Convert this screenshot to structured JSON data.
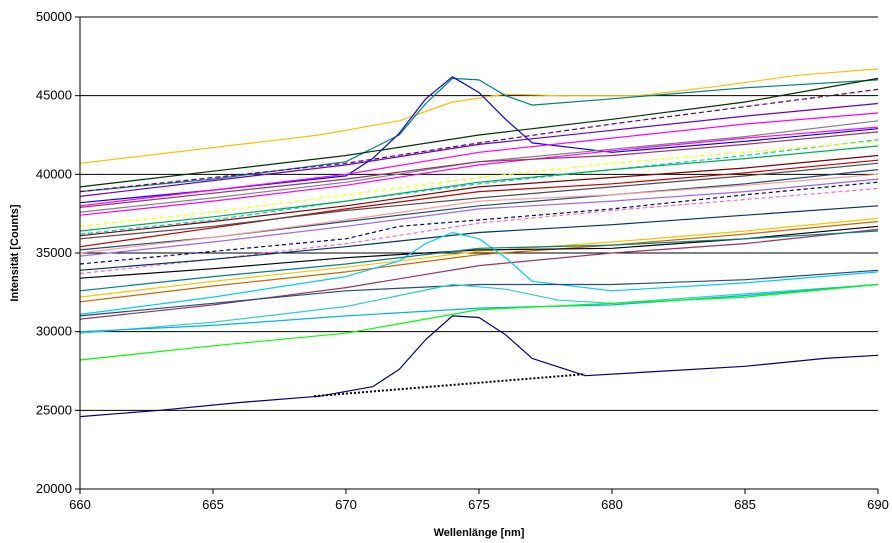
{
  "chart_data": {
    "type": "line",
    "title": "",
    "xlabel": "Wellenlänge [nm]",
    "ylabel": "Intensität [Counts]",
    "xlim": [
      660,
      690
    ],
    "ylim": [
      20000,
      50000
    ],
    "x_ticks": [
      "660",
      "665",
      "670",
      "675",
      "680",
      "685",
      "690"
    ],
    "y_ticks": [
      "20000",
      "25000",
      "30000",
      "35000",
      "40000",
      "45000",
      "50000"
    ],
    "grid": "horizontal",
    "legend": "none",
    "series": [
      {
        "color": "#ffc000",
        "values": [
          [
            660,
            40700
          ],
          [
            663,
            41300
          ],
          [
            666,
            41900
          ],
          [
            669,
            42500
          ],
          [
            672,
            43400
          ],
          [
            674,
            44600
          ],
          [
            676,
            45100
          ],
          [
            678,
            45000
          ],
          [
            681,
            45000
          ],
          [
            684,
            45600
          ],
          [
            687,
            46300
          ],
          [
            690,
            46700
          ]
        ]
      },
      {
        "color": "#008080",
        "values": [
          [
            660,
            38900
          ],
          [
            665,
            39700
          ],
          [
            670,
            40800
          ],
          [
            672,
            42500
          ],
          [
            673,
            44500
          ],
          [
            674,
            46100
          ],
          [
            675,
            46000
          ],
          [
            676,
            45000
          ],
          [
            677,
            44400
          ],
          [
            680,
            44800
          ],
          [
            685,
            45500
          ],
          [
            690,
            46000
          ]
        ]
      },
      {
        "color": "#0000ff",
        "values": [
          [
            660,
            38200
          ],
          [
            665,
            39000
          ],
          [
            670,
            39900
          ],
          [
            671,
            41000
          ],
          [
            672,
            42600
          ],
          [
            673,
            44800
          ],
          [
            674,
            46200
          ],
          [
            675,
            45200
          ],
          [
            676,
            43500
          ],
          [
            677,
            42000
          ],
          [
            680,
            41400
          ],
          [
            685,
            42100
          ],
          [
            690,
            42900
          ]
        ]
      },
      {
        "color": "#003300",
        "values": [
          [
            660,
            39200
          ],
          [
            665,
            40200
          ],
          [
            670,
            41200
          ],
          [
            675,
            42500
          ],
          [
            680,
            43500
          ],
          [
            685,
            44600
          ],
          [
            690,
            46100
          ]
        ]
      },
      {
        "color": "#660066",
        "dash": "5,3",
        "values": [
          [
            660,
            38900
          ],
          [
            665,
            39800
          ],
          [
            670,
            40700
          ],
          [
            675,
            42000
          ],
          [
            680,
            43200
          ],
          [
            685,
            44300
          ],
          [
            690,
            45400
          ]
        ]
      },
      {
        "color": "#ff00ff",
        "values": [
          [
            660,
            38000
          ],
          [
            665,
            39000
          ],
          [
            670,
            40000
          ],
          [
            675,
            41400
          ],
          [
            680,
            42300
          ],
          [
            685,
            43200
          ],
          [
            690,
            43900
          ]
        ]
      },
      {
        "color": "#ff00ff",
        "values": [
          [
            660,
            37400
          ],
          [
            665,
            38300
          ],
          [
            670,
            39300
          ],
          [
            675,
            40600
          ],
          [
            680,
            41500
          ],
          [
            685,
            42300
          ],
          [
            690,
            43000
          ]
        ]
      },
      {
        "color": "#6600cc",
        "values": [
          [
            660,
            38600
          ],
          [
            665,
            39600
          ],
          [
            670,
            40600
          ],
          [
            675,
            41900
          ],
          [
            680,
            42800
          ],
          [
            685,
            43700
          ],
          [
            690,
            44500
          ]
        ]
      },
      {
        "color": "#808080",
        "values": [
          [
            660,
            37600
          ],
          [
            665,
            38500
          ],
          [
            670,
            39500
          ],
          [
            675,
            40800
          ],
          [
            680,
            41600
          ],
          [
            685,
            42400
          ],
          [
            690,
            43400
          ]
        ]
      },
      {
        "color": "#00cccc",
        "dash": "5,3",
        "values": [
          [
            660,
            36200
          ],
          [
            665,
            37100
          ],
          [
            670,
            38300
          ],
          [
            675,
            39400
          ],
          [
            680,
            40300
          ],
          [
            685,
            41200
          ],
          [
            690,
            42200
          ]
        ]
      },
      {
        "color": "#ffff00",
        "dash": "5,3",
        "values": [
          [
            660,
            36700
          ],
          [
            665,
            37600
          ],
          [
            670,
            38700
          ],
          [
            675,
            39800
          ],
          [
            680,
            40700
          ],
          [
            685,
            41400
          ],
          [
            690,
            42100
          ]
        ]
      },
      {
        "color": "#993366",
        "values": [
          [
            660,
            37900
          ],
          [
            665,
            38800
          ],
          [
            670,
            39700
          ],
          [
            675,
            40800
          ],
          [
            680,
            41200
          ],
          [
            685,
            41900
          ],
          [
            690,
            42700
          ]
        ]
      },
      {
        "color": "#00b050",
        "values": [
          [
            660,
            36400
          ],
          [
            665,
            37300
          ],
          [
            670,
            38300
          ],
          [
            675,
            39500
          ],
          [
            680,
            40300
          ],
          [
            685,
            41000
          ],
          [
            690,
            41800
          ]
        ]
      },
      {
        "color": "#c00000",
        "values": [
          [
            660,
            35400
          ],
          [
            665,
            36600
          ],
          [
            670,
            37800
          ],
          [
            675,
            38900
          ],
          [
            680,
            39400
          ],
          [
            685,
            40100
          ],
          [
            690,
            40900
          ]
        ]
      },
      {
        "color": "#800000",
        "values": [
          [
            660,
            36100
          ],
          [
            665,
            37000
          ],
          [
            670,
            38000
          ],
          [
            675,
            39200
          ],
          [
            680,
            39800
          ],
          [
            685,
            40400
          ],
          [
            690,
            41200
          ]
        ]
      },
      {
        "color": "#4d4d4d",
        "values": [
          [
            660,
            35900
          ],
          [
            665,
            36700
          ],
          [
            670,
            37700
          ],
          [
            675,
            38500
          ],
          [
            680,
            39200
          ],
          [
            685,
            39900
          ],
          [
            690,
            40700
          ]
        ]
      },
      {
        "color": "#1f4e79",
        "values": [
          [
            660,
            35200
          ],
          [
            665,
            36000
          ],
          [
            670,
            37000
          ],
          [
            675,
            38000
          ],
          [
            680,
            38700
          ],
          [
            685,
            39400
          ],
          [
            690,
            40300
          ]
        ]
      },
      {
        "color": "#000080",
        "dash": "4,3",
        "values": [
          [
            660,
            34300
          ],
          [
            665,
            35100
          ],
          [
            670,
            35900
          ],
          [
            672,
            36700
          ],
          [
            675,
            37100
          ],
          [
            680,
            37800
          ],
          [
            685,
            38700
          ],
          [
            690,
            39500
          ]
        ]
      },
      {
        "color": "#ff66cc",
        "dash": "4,3",
        "values": [
          [
            660,
            33700
          ],
          [
            665,
            34600
          ],
          [
            670,
            35600
          ],
          [
            675,
            36900
          ],
          [
            680,
            37700
          ],
          [
            685,
            38400
          ],
          [
            690,
            39100
          ]
        ]
      },
      {
        "color": "#9966ff",
        "values": [
          [
            660,
            34800
          ],
          [
            665,
            35700
          ],
          [
            670,
            36700
          ],
          [
            675,
            37800
          ],
          [
            680,
            38300
          ],
          [
            685,
            38900
          ],
          [
            690,
            39700
          ]
        ]
      },
      {
        "color": "#ff9999",
        "values": [
          [
            660,
            35000
          ],
          [
            665,
            36000
          ],
          [
            670,
            37100
          ],
          [
            675,
            38300
          ],
          [
            680,
            38700
          ],
          [
            685,
            39300
          ],
          [
            690,
            40000
          ]
        ]
      },
      {
        "color": "#ffc000",
        "values": [
          [
            660,
            32200
          ],
          [
            665,
            33200
          ],
          [
            670,
            34100
          ],
          [
            675,
            35100
          ],
          [
            680,
            35700
          ],
          [
            685,
            36400
          ],
          [
            690,
            37200
          ]
        ]
      },
      {
        "color": "#cc6600",
        "values": [
          [
            660,
            31900
          ],
          [
            665,
            32900
          ],
          [
            670,
            33800
          ],
          [
            675,
            34900
          ],
          [
            680,
            35500
          ],
          [
            685,
            36200
          ],
          [
            690,
            37000
          ]
        ]
      },
      {
        "color": "#000000",
        "values": [
          [
            660,
            33400
          ],
          [
            665,
            34000
          ],
          [
            670,
            34700
          ],
          [
            675,
            35200
          ],
          [
            680,
            35300
          ],
          [
            685,
            35900
          ],
          [
            690,
            36700
          ]
        ]
      },
      {
        "color": "#003366",
        "values": [
          [
            660,
            33900
          ],
          [
            665,
            34600
          ],
          [
            670,
            35400
          ],
          [
            675,
            36300
          ],
          [
            680,
            36800
          ],
          [
            685,
            37400
          ],
          [
            690,
            38000
          ]
        ]
      },
      {
        "color": "#993366",
        "values": [
          [
            660,
            30800
          ],
          [
            665,
            31700
          ],
          [
            670,
            32800
          ],
          [
            675,
            34200
          ],
          [
            680,
            35000
          ],
          [
            685,
            35600
          ],
          [
            690,
            36500
          ]
        ]
      },
      {
        "color": "#00ccff",
        "values": [
          [
            660,
            31100
          ],
          [
            665,
            32200
          ],
          [
            670,
            33500
          ],
          [
            672,
            34500
          ],
          [
            673,
            35600
          ],
          [
            674,
            36300
          ],
          [
            675,
            35900
          ],
          [
            676,
            34700
          ],
          [
            677,
            33200
          ],
          [
            680,
            32600
          ],
          [
            685,
            33100
          ],
          [
            690,
            33800
          ]
        ]
      },
      {
        "color": "#1f4e79",
        "values": [
          [
            660,
            31000
          ],
          [
            665,
            31800
          ],
          [
            670,
            32600
          ],
          [
            675,
            33000
          ],
          [
            680,
            33000
          ],
          [
            685,
            33300
          ],
          [
            690,
            33900
          ]
        ]
      },
      {
        "color": "#008080",
        "values": [
          [
            660,
            32600
          ],
          [
            665,
            33500
          ],
          [
            670,
            34300
          ],
          [
            675,
            35300
          ],
          [
            680,
            35500
          ],
          [
            685,
            35900
          ],
          [
            690,
            36400
          ]
        ]
      },
      {
        "color": "#33cccc",
        "values": [
          [
            660,
            29900
          ],
          [
            665,
            30600
          ],
          [
            670,
            31600
          ],
          [
            672,
            32300
          ],
          [
            674,
            33000
          ],
          [
            676,
            32700
          ],
          [
            678,
            32000
          ],
          [
            680,
            31800
          ],
          [
            685,
            32400
          ],
          [
            690,
            33000
          ]
        ]
      },
      {
        "color": "#00b0f0",
        "values": [
          [
            660,
            30000
          ],
          [
            665,
            30400
          ],
          [
            670,
            31000
          ],
          [
            675,
            31500
          ],
          [
            680,
            31700
          ],
          [
            685,
            32300
          ],
          [
            690,
            33000
          ]
        ]
      },
      {
        "color": "#00ff00",
        "values": [
          [
            660,
            28200
          ],
          [
            665,
            29100
          ],
          [
            670,
            29900
          ],
          [
            675,
            31400
          ],
          [
            680,
            31800
          ],
          [
            685,
            32200
          ],
          [
            690,
            33000
          ]
        ]
      },
      {
        "color": "#000080",
        "values": [
          [
            660,
            24600
          ],
          [
            663,
            25000
          ],
          [
            666,
            25500
          ],
          [
            669,
            25900
          ],
          [
            671,
            26500
          ],
          [
            672,
            27600
          ],
          [
            673,
            29500
          ],
          [
            674,
            31000
          ],
          [
            675,
            30900
          ],
          [
            676,
            29800
          ],
          [
            677,
            28300
          ],
          [
            679,
            27200
          ],
          [
            682,
            27500
          ],
          [
            685,
            27800
          ],
          [
            688,
            28300
          ],
          [
            690,
            28500
          ]
        ]
      },
      {
        "color": "#000000",
        "dash": "2,2",
        "values": [
          [
            668.8,
            25900
          ],
          [
            679,
            27300
          ]
        ]
      }
    ]
  }
}
